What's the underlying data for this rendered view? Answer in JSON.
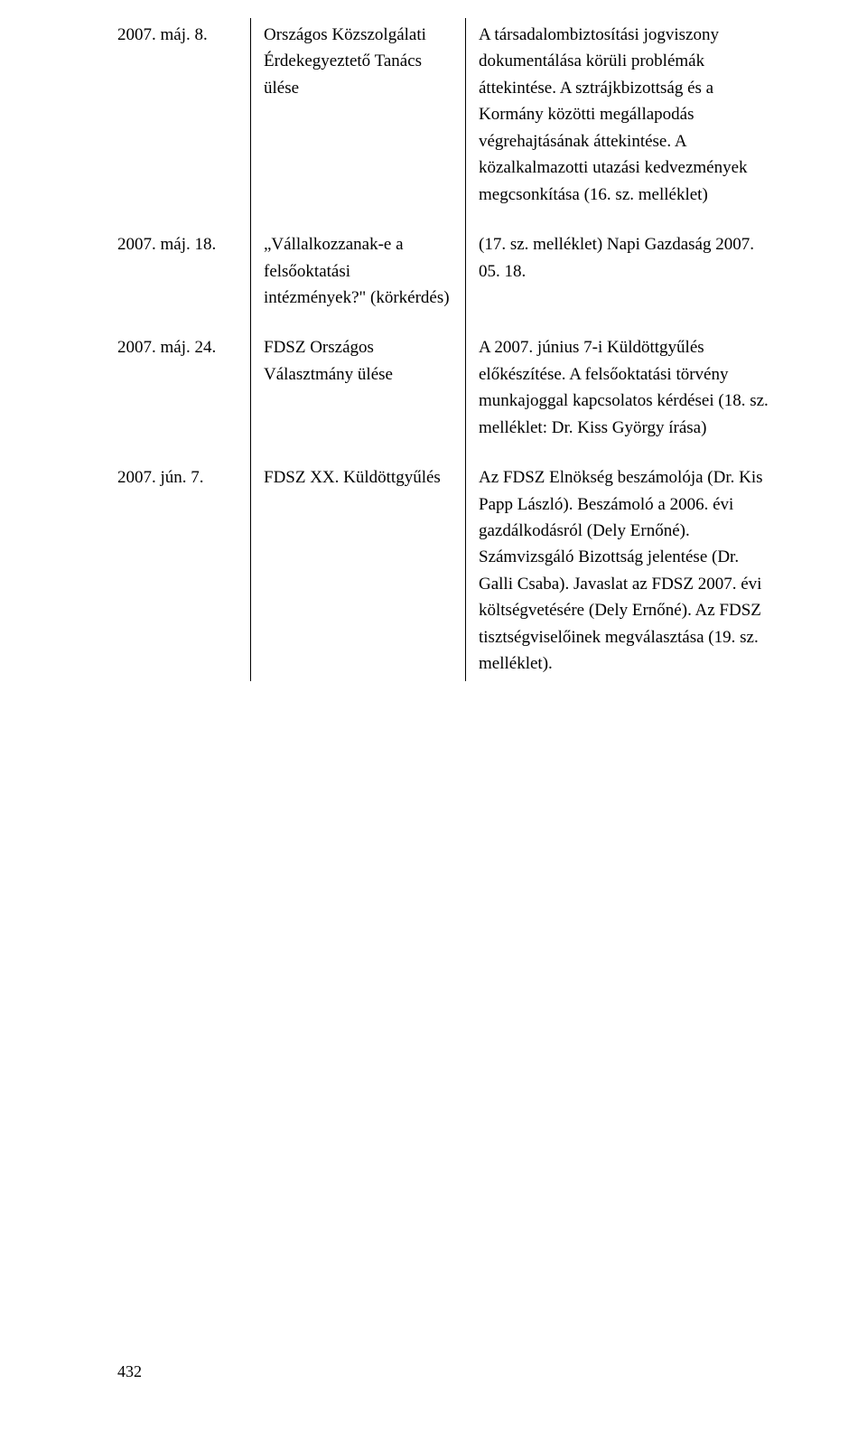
{
  "rows": [
    {
      "date": "2007. máj. 8.",
      "event": "Országos Közszolgálati Érdekegyeztető Tanács ülése",
      "desc": "A társadalombiztosítási jogviszony dokumentálása körüli problémák áttekintése. A sztrájkbizottság és a Kormány közötti megállapodás végrehajtásának áttekintése. A közalkalmazotti utazási kedvezmények megcsonkítása (16. sz. melléklet)"
    },
    {
      "date": "2007. máj. 18.",
      "event": "„Vállalkozzanak-e a felsőoktatási intézmények?\" (körkérdés)",
      "desc": "(17. sz. melléklet) Napi Gazdaság 2007. 05. 18."
    },
    {
      "date": "2007. máj. 24.",
      "event": "FDSZ Országos Választmány ülése",
      "desc": "A 2007. június 7-i Küldöttgyűlés előkészítése. A felsőoktatási törvény munkajoggal kapcsolatos kérdései (18. sz. melléklet: Dr. Kiss György írása)"
    },
    {
      "date": "2007. jún. 7.",
      "event": "FDSZ XX. Küldöttgyűlés",
      "desc": "Az FDSZ Elnökség beszámolója (Dr. Kis Papp László). Beszámoló a 2006. évi gazdálkodásról (Dely Ernőné). Számvizsgáló Bizottság jelentése (Dr. Galli Csaba). Javaslat az FDSZ 2007. évi költségvetésére (Dely Ernőné). Az FDSZ tisztségviselőinek megválasztása (19. sz. melléklet)."
    }
  ],
  "pageNumber": "432",
  "styles": {
    "fontFamily": "Georgia, serif",
    "fontSize": 19,
    "lineHeight": 1.55,
    "textColor": "#000000",
    "backgroundColor": "#ffffff",
    "borderColor": "#000000",
    "pageWidth": 960,
    "pageHeight": 1584,
    "colDateWidth": 148,
    "colEventWidth": 238
  }
}
